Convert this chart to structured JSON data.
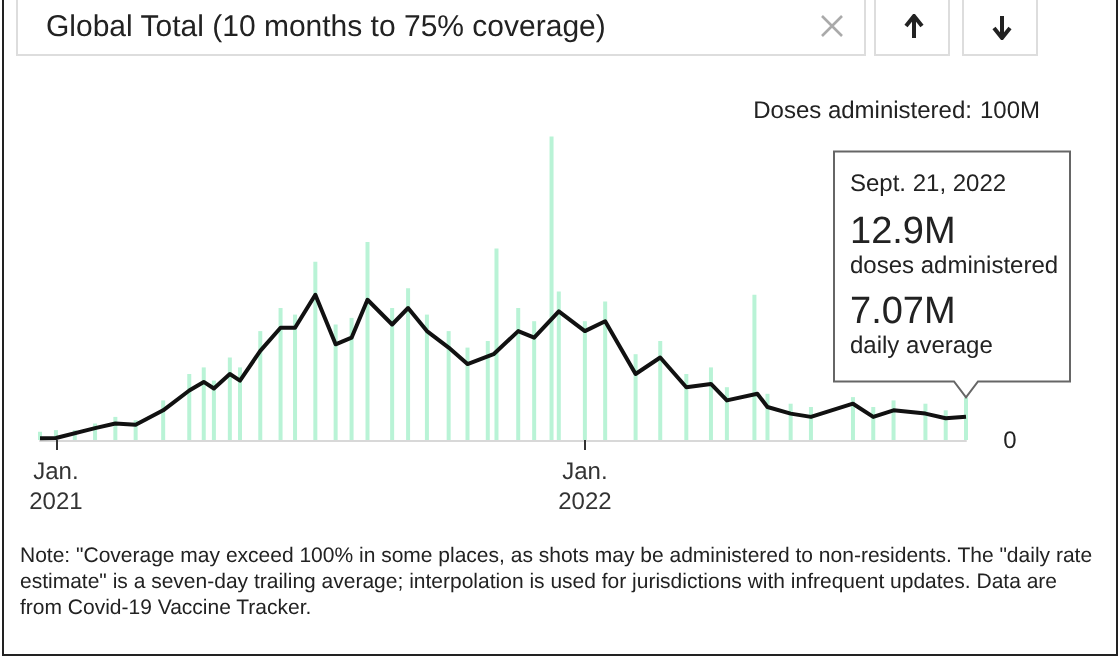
{
  "chart_data": {
    "type": "bar",
    "title": "Global Total (10 months to 75% coverage)",
    "ylabel": "Doses administered:",
    "xticks": [
      {
        "value": "2021-01-01",
        "label": "Jan.\n2021"
      },
      {
        "value": "2022-01-01",
        "label": "Jan.\n2022"
      }
    ],
    "xlim": [
      "2020-12-21",
      "2022-09-21"
    ],
    "ylim": [
      0,
      100
    ],
    "yticks": [
      {
        "value": 0,
        "label": "0"
      },
      {
        "value": 100,
        "label": "100M"
      }
    ],
    "grid": false,
    "series": [
      {
        "color": "#b9f3d6",
        "x": [
          "2020-12-21",
          "2021-01-01",
          "2021-01-14",
          "2021-01-28",
          "2021-02-11",
          "2021-02-25",
          "2021-03-16",
          "2021-04-03",
          "2021-04-13",
          "2021-04-20",
          "2021-05-01",
          "2021-05-08",
          "2021-05-22",
          "2021-06-05",
          "2021-06-15",
          "2021-06-29",
          "2021-07-13",
          "2021-07-24",
          "2021-08-04",
          "2021-08-21",
          "2021-09-01",
          "2021-09-14",
          "2021-09-29",
          "2021-10-12",
          "2021-10-26",
          "2021-11-01",
          "2021-11-16",
          "2021-11-27",
          "2021-12-09",
          "2021-12-14",
          "2022-01-01",
          "2022-01-15",
          "2022-02-05",
          "2022-02-22",
          "2022-03-12",
          "2022-03-29",
          "2022-04-09",
          "2022-04-28",
          "2022-05-07",
          "2022-05-23",
          "2022-06-06",
          "2022-07-05",
          "2022-07-19",
          "2022-08-02",
          "2022-08-24",
          "2022-09-07",
          "2022-09-21"
        ],
        "values": [
          2.5,
          3,
          3,
          5,
          7,
          6,
          12,
          20,
          22,
          18,
          25,
          22,
          33,
          40,
          38,
          54,
          35,
          37,
          60,
          40,
          46,
          38,
          33,
          28,
          30,
          58,
          40,
          36,
          92,
          45,
          36,
          42,
          26,
          30,
          20,
          22,
          16,
          44,
          14,
          11,
          10,
          13,
          10,
          12,
          11,
          9,
          12.9
        ]
      },
      {
        "type": "line",
        "color": "#111111",
        "marker": "none",
        "x": [
          "2020-12-21",
          "2021-01-01",
          "2021-01-28",
          "2021-02-11",
          "2021-02-25",
          "2021-03-16",
          "2021-04-03",
          "2021-04-13",
          "2021-04-20",
          "2021-05-01",
          "2021-05-08",
          "2021-05-22",
          "2021-06-05",
          "2021-06-15",
          "2021-06-29",
          "2021-07-13",
          "2021-07-24",
          "2021-08-04",
          "2021-08-21",
          "2021-09-01",
          "2021-09-14",
          "2021-09-29",
          "2021-10-12",
          "2021-10-30",
          "2021-11-16",
          "2021-11-27",
          "2021-12-14",
          "2022-01-01",
          "2022-01-15",
          "2022-02-05",
          "2022-02-22",
          "2022-03-12",
          "2022-03-29",
          "2022-04-09",
          "2022-04-30",
          "2022-05-07",
          "2022-05-23",
          "2022-06-06",
          "2022-07-05",
          "2022-07-19",
          "2022-08-02",
          "2022-08-24",
          "2022-09-07",
          "2022-09-21"
        ],
        "values": [
          0.5,
          0.6,
          3.6,
          5,
          4.6,
          9,
          15,
          17.6,
          15.6,
          20,
          18,
          27,
          34,
          34,
          44,
          29,
          31,
          42.5,
          35,
          40,
          33,
          28,
          23,
          26,
          33,
          31,
          39,
          33,
          36,
          20,
          25,
          16,
          17,
          12,
          14,
          10,
          8,
          7,
          11,
          7,
          9,
          8,
          6.6,
          7.07
        ]
      }
    ],
    "annotations": [
      "Sept. 21, 2022\n12.9M\ndoses administered\n7.07M\ndaily average",
      "Note: \"Coverage may exceed 100% in some places, as shots may be administered to non-residents. The \"daily rate estimate\" is a seven-day trailing average; interpolation is used for jurisdictions with infrequent updates. Data are from Covid-19 Vaccine Tracker."
    ]
  }
}
